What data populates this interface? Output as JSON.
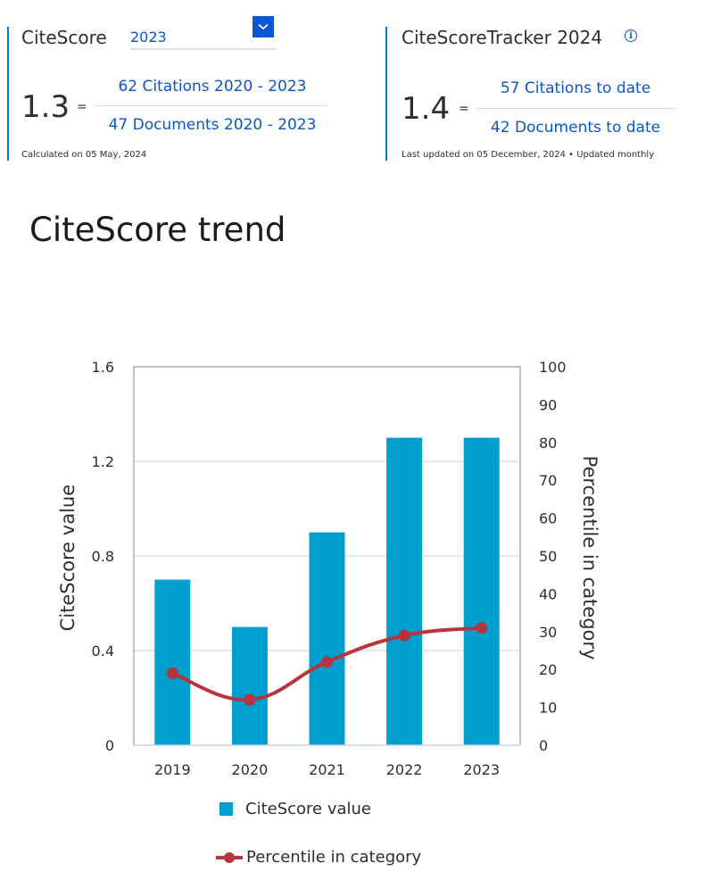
{
  "citescore": {
    "title": "CiteScore",
    "year_selected": "2023",
    "value": "1.3",
    "equals": "=",
    "numerator": "62 Citations 2020 - 2023",
    "denominator": "47 Documents 2020 - 2023",
    "footnote": "Calculated on 05 May, 2024"
  },
  "tracker": {
    "title": "CiteScoreTracker 2024",
    "info_icon": "info-icon",
    "value": "1.4",
    "equals": "=",
    "numerator": "57 Citations to date",
    "denominator": "42 Documents to date",
    "footnote": "Last updated on 05 December, 2024 • Updated monthly"
  },
  "section_title": "CiteScore trend",
  "colors": {
    "bar": "#009ecf",
    "line": "#b9333d",
    "link": "#0a56c7",
    "accent": "#0a56d6"
  },
  "chart_data": {
    "type": "bar",
    "categories": [
      "2019",
      "2020",
      "2021",
      "2022",
      "2023"
    ],
    "series": [
      {
        "name": "CiteScore value",
        "type": "bar",
        "axis": "left",
        "values": [
          0.7,
          0.5,
          0.9,
          1.3,
          1.3
        ]
      },
      {
        "name": "Percentile in category",
        "type": "line",
        "axis": "right",
        "values": [
          19,
          12,
          22,
          29,
          31
        ]
      }
    ],
    "ylabel": "CiteScore value",
    "ylabel_right": "Percentile in category",
    "ylim": [
      0,
      1.6
    ],
    "ylim_right": [
      0,
      100
    ],
    "yticks": [
      "0",
      "0.4",
      "0.8",
      "1.2",
      "1.6"
    ],
    "yticks_right": [
      "0",
      "10",
      "20",
      "30",
      "40",
      "50",
      "60",
      "70",
      "80",
      "90",
      "100"
    ],
    "grid": true,
    "legend": "bottom"
  }
}
